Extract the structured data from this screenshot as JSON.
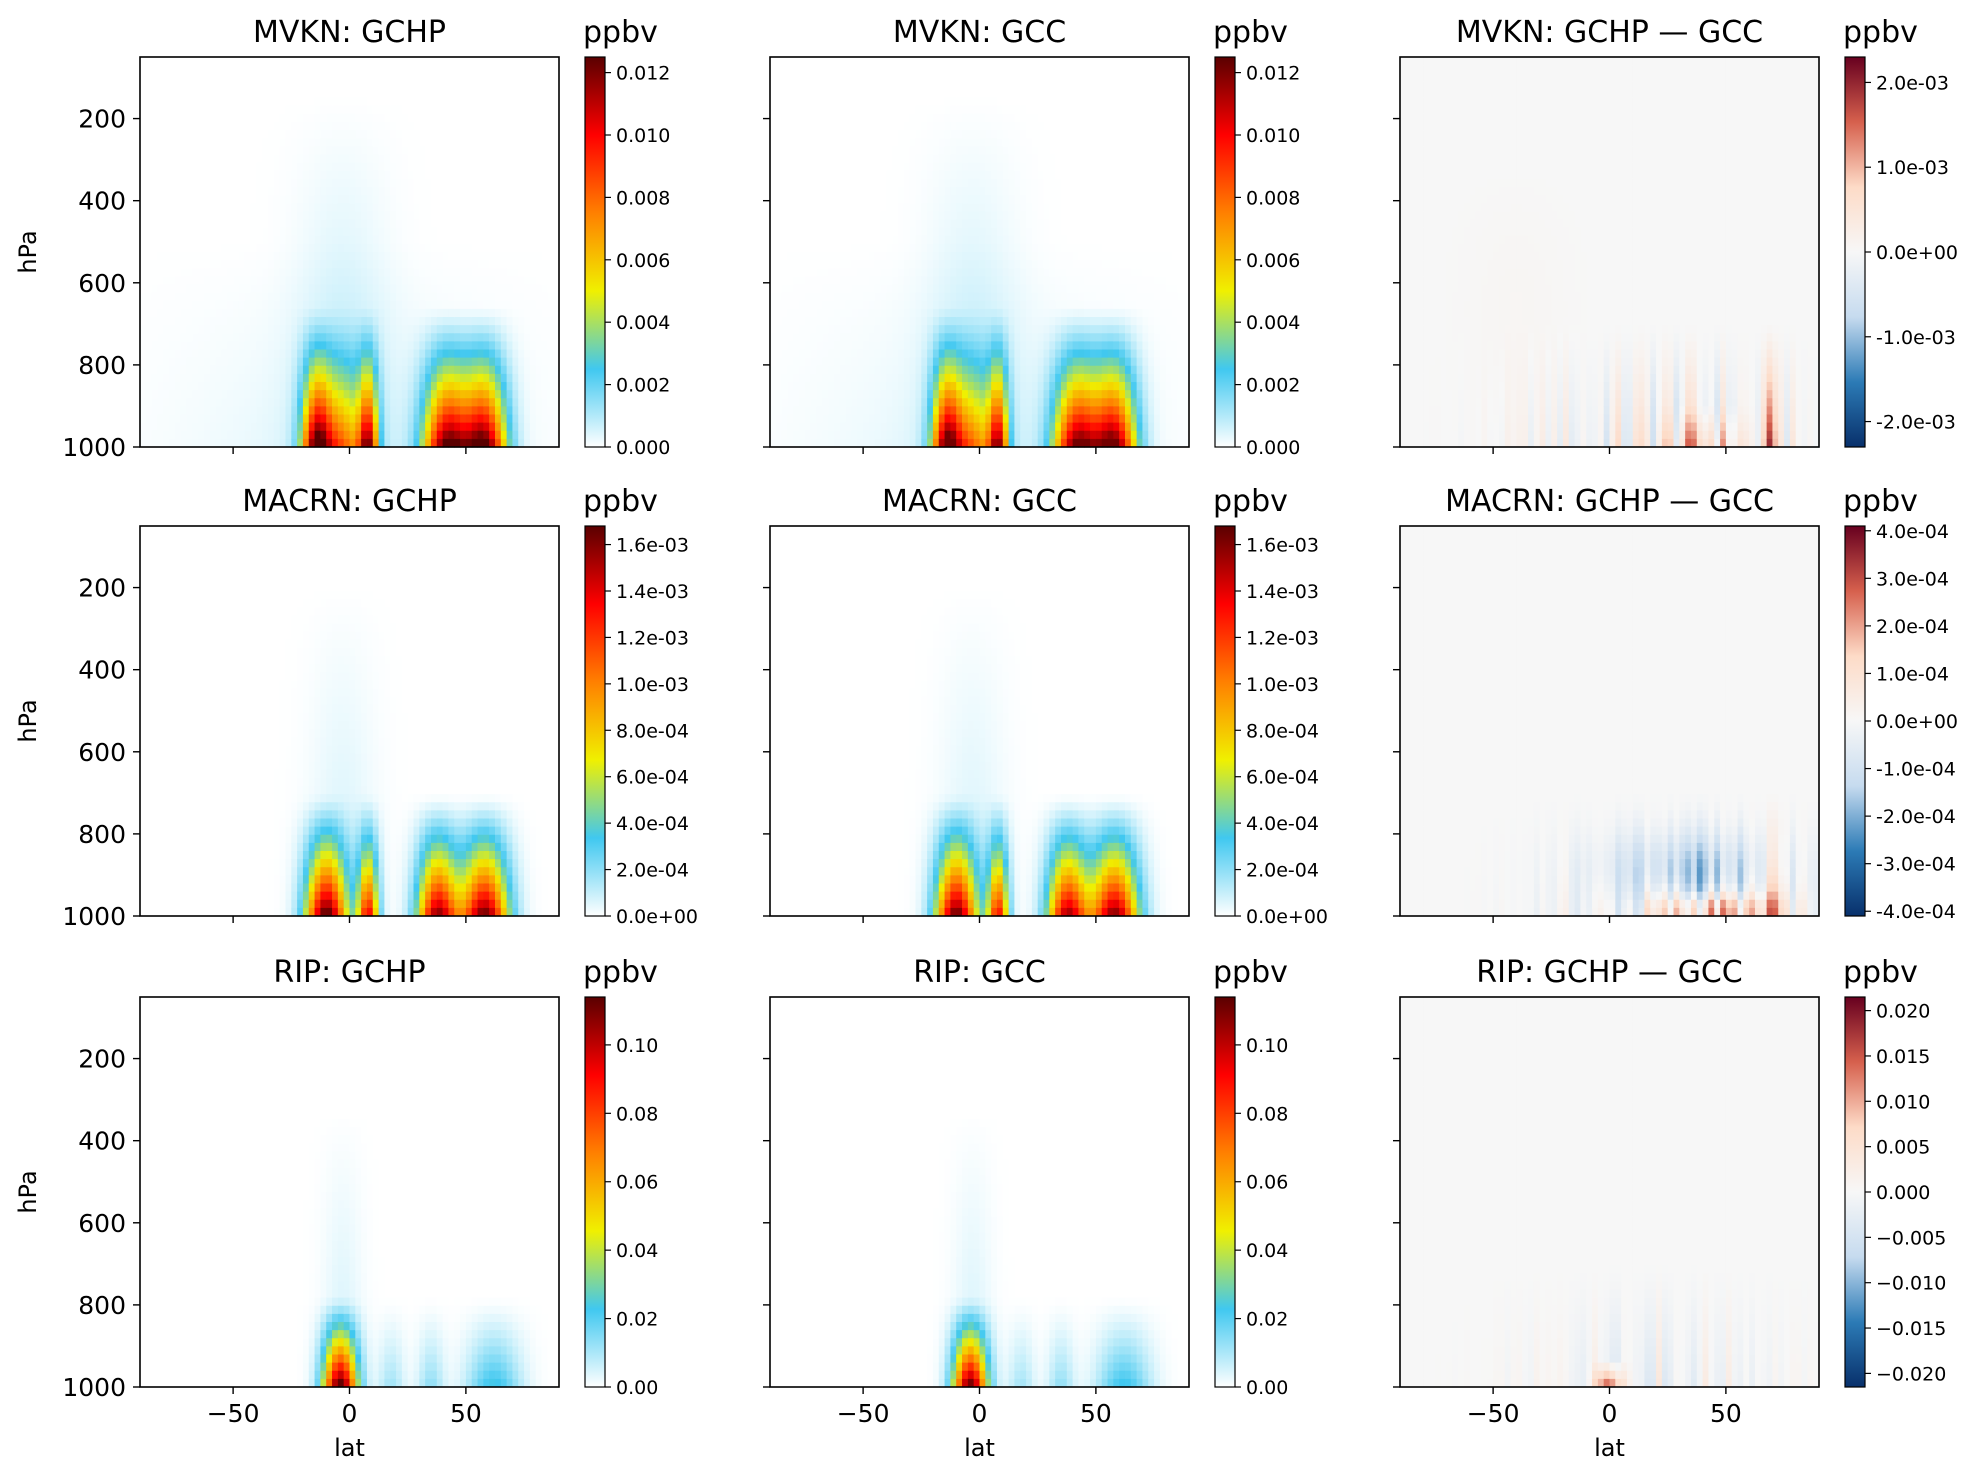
{
  "colors": {
    "seq_stops": [
      "#ffffff",
      "#40c8f0",
      "#f0f000",
      "#ff8000",
      "#ff0000",
      "#5a0000"
    ],
    "div_stops": [
      "#08306b",
      "#2c7bb6",
      "#c6dbef",
      "#f7f7f7",
      "#fddbc7",
      "#d6604d",
      "#67001f"
    ]
  },
  "chart_data": [
    {
      "type": "heatmap",
      "title": "MVKN: GCHP",
      "colorbar_label": "ppbv",
      "cmap": "sequential",
      "ylabel": "hPa",
      "xlabel": "",
      "yticks": [
        "200",
        "400",
        "600",
        "800",
        "1000"
      ],
      "xticks": [
        "−50",
        "0",
        "50"
      ],
      "xlim": [
        -90,
        90
      ],
      "ylim": [
        1000,
        50
      ],
      "colorbar_ticks": [
        "0.000",
        "0.002",
        "0.004",
        "0.006",
        "0.008",
        "0.010",
        "0.012"
      ],
      "colorbar_range": [
        0,
        0.0125
      ]
    },
    {
      "type": "heatmap",
      "title": "MVKN: GCC",
      "colorbar_label": "ppbv",
      "cmap": "sequential",
      "ylabel": "",
      "xlabel": "",
      "yticks": [
        "",
        "",
        "",
        "",
        ""
      ],
      "xticks": [
        "−50",
        "0",
        "50"
      ],
      "xlim": [
        -90,
        90
      ],
      "ylim": [
        1000,
        50
      ],
      "colorbar_ticks": [
        "0.000",
        "0.002",
        "0.004",
        "0.006",
        "0.008",
        "0.010",
        "0.012"
      ],
      "colorbar_range": [
        0,
        0.0125
      ]
    },
    {
      "type": "heatmap",
      "title": "MVKN: GCHP — GCC",
      "colorbar_label": "ppbv",
      "cmap": "diverging",
      "ylabel": "",
      "xlabel": "",
      "yticks": [
        "",
        "",
        "",
        "",
        ""
      ],
      "xticks": [
        "−50",
        "0",
        "50"
      ],
      "xlim": [
        -90,
        90
      ],
      "ylim": [
        1000,
        50
      ],
      "colorbar_ticks": [
        "-2.0e-03",
        "-1.0e-03",
        "0.0e+00",
        "1.0e-03",
        "2.0e-03"
      ],
      "colorbar_range": [
        -0.0023,
        0.0023
      ]
    },
    {
      "type": "heatmap",
      "title": "MACRN: GCHP",
      "colorbar_label": "ppbv",
      "cmap": "sequential",
      "ylabel": "hPa",
      "xlabel": "",
      "yticks": [
        "200",
        "400",
        "600",
        "800",
        "1000"
      ],
      "xticks": [
        "−50",
        "0",
        "50"
      ],
      "xlim": [
        -90,
        90
      ],
      "ylim": [
        1000,
        50
      ],
      "colorbar_ticks": [
        "0.0e+00",
        "2.0e-04",
        "4.0e-04",
        "6.0e-04",
        "8.0e-04",
        "1.0e-03",
        "1.2e-03",
        "1.4e-03",
        "1.6e-03"
      ],
      "colorbar_range": [
        0,
        0.00168
      ]
    },
    {
      "type": "heatmap",
      "title": "MACRN: GCC",
      "colorbar_label": "ppbv",
      "cmap": "sequential",
      "ylabel": "",
      "xlabel": "",
      "yticks": [
        "",
        "",
        "",
        "",
        ""
      ],
      "xticks": [
        "−50",
        "0",
        "50"
      ],
      "xlim": [
        -90,
        90
      ],
      "ylim": [
        1000,
        50
      ],
      "colorbar_ticks": [
        "0.0e+00",
        "2.0e-04",
        "4.0e-04",
        "6.0e-04",
        "8.0e-04",
        "1.0e-03",
        "1.2e-03",
        "1.4e-03",
        "1.6e-03"
      ],
      "colorbar_range": [
        0,
        0.00168
      ]
    },
    {
      "type": "heatmap",
      "title": "MACRN: GCHP — GCC",
      "colorbar_label": "ppbv",
      "cmap": "diverging",
      "ylabel": "",
      "xlabel": "",
      "yticks": [
        "",
        "",
        "",
        "",
        ""
      ],
      "xticks": [
        "−50",
        "0",
        "50"
      ],
      "xlim": [
        -90,
        90
      ],
      "ylim": [
        1000,
        50
      ],
      "colorbar_ticks": [
        "-4.0e-04",
        "-3.0e-04",
        "-2.0e-04",
        "-1.0e-04",
        "0.0e+00",
        "1.0e-04",
        "2.0e-04",
        "3.0e-04",
        "4.0e-04"
      ],
      "colorbar_range": [
        -0.00041,
        0.00041
      ]
    },
    {
      "type": "heatmap",
      "title": "RIP: GCHP",
      "colorbar_label": "ppbv",
      "cmap": "sequential",
      "ylabel": "hPa",
      "xlabel": "lat",
      "yticks": [
        "200",
        "400",
        "600",
        "800",
        "1000"
      ],
      "xticks": [
        "−50",
        "0",
        "50"
      ],
      "xlim": [
        -90,
        90
      ],
      "ylim": [
        1000,
        50
      ],
      "colorbar_ticks": [
        "0.00",
        "0.02",
        "0.04",
        "0.06",
        "0.08",
        "0.10"
      ],
      "colorbar_range": [
        0,
        0.114
      ]
    },
    {
      "type": "heatmap",
      "title": "RIP: GCC",
      "colorbar_label": "ppbv",
      "cmap": "sequential",
      "ylabel": "",
      "xlabel": "lat",
      "yticks": [
        "",
        "",
        "",
        "",
        ""
      ],
      "xticks": [
        "−50",
        "0",
        "50"
      ],
      "xlim": [
        -90,
        90
      ],
      "ylim": [
        1000,
        50
      ],
      "colorbar_ticks": [
        "0.00",
        "0.02",
        "0.04",
        "0.06",
        "0.08",
        "0.10"
      ],
      "colorbar_range": [
        0,
        0.114
      ]
    },
    {
      "type": "heatmap",
      "title": "RIP: GCHP — GCC",
      "colorbar_label": "ppbv",
      "cmap": "diverging",
      "ylabel": "",
      "xlabel": "lat",
      "yticks": [
        "",
        "",
        "",
        "",
        ""
      ],
      "xticks": [
        "−50",
        "0",
        "50"
      ],
      "xlim": [
        -90,
        90
      ],
      "ylim": [
        1000,
        50
      ],
      "colorbar_ticks": [
        "−0.020",
        "−0.015",
        "−0.010",
        "−0.005",
        "0.000",
        "0.005",
        "0.010",
        "0.015",
        "0.020"
      ],
      "colorbar_range": [
        -0.0215,
        0.0215
      ]
    }
  ]
}
